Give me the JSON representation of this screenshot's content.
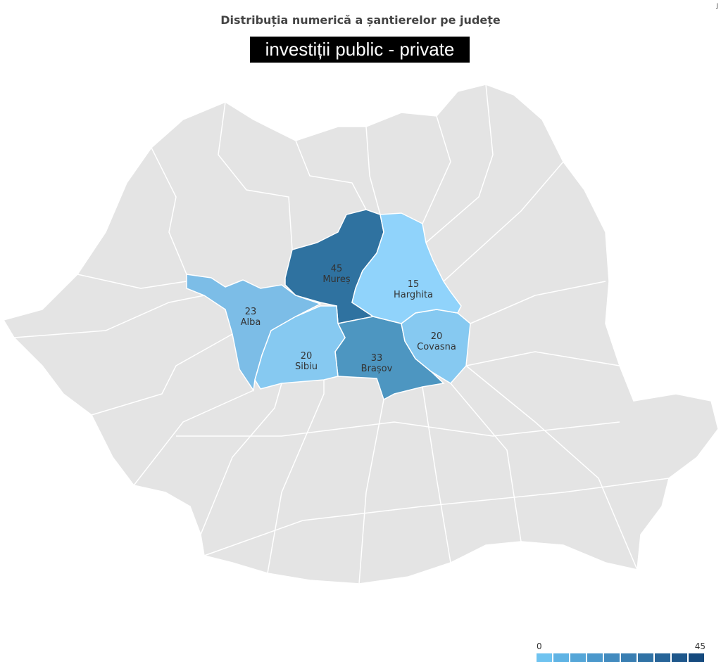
{
  "title": "Distribuția numerică a șantierelor pe județe",
  "subtitle": "investiții public - private",
  "corner_mark": "J",
  "chart_data": {
    "type": "choropleth",
    "region": "Romania counties",
    "highlighted": [
      {
        "name": "Mureș",
        "value": 45,
        "color": "#2f72a0"
      },
      {
        "name": "Brașov",
        "value": 33,
        "color": "#4d96c1"
      },
      {
        "name": "Alba",
        "value": 23,
        "color": "#7cbde7"
      },
      {
        "name": "Sibiu",
        "value": 20,
        "color": "#86c9f1"
      },
      {
        "name": "Covasna",
        "value": 20,
        "color": "#86c9f1"
      },
      {
        "name": "Harghita",
        "value": 15,
        "color": "#90d3fb"
      }
    ],
    "no_data_color": "#e4e4e4",
    "legend": {
      "min": "0",
      "max": "45",
      "placement": "bottom-right",
      "colors": [
        "#6fc3f0",
        "#5fb3e4",
        "#55a6d8",
        "#4b98cc",
        "#428bbf",
        "#397eb2",
        "#3072a5",
        "#276498",
        "#1e578b",
        "#154a7e"
      ]
    }
  }
}
